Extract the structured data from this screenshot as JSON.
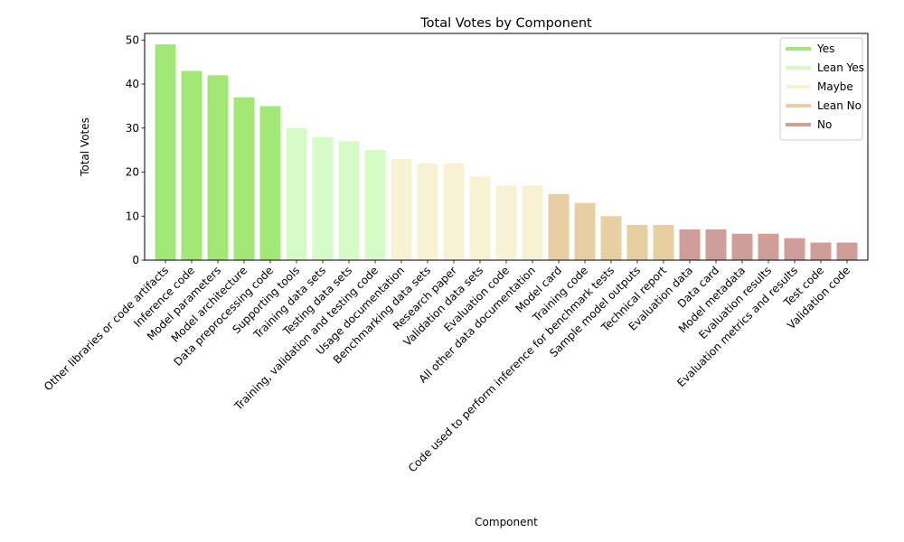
{
  "chart_data": {
    "type": "bar",
    "title": "Total Votes by Component",
    "xlabel": "Component",
    "ylabel": "Total Votes",
    "ylim": [
      0,
      51.5
    ],
    "yticks": [
      0,
      10,
      20,
      30,
      40,
      50
    ],
    "grid": false,
    "legend_position": "top-right",
    "categories": [
      "Other libraries or code artifacts",
      "Inference code",
      "Model parameters",
      "Model architecture",
      "Data preprocessing code",
      "Supporting tools",
      "Training data sets",
      "Testing data sets",
      "Training, validation and testing code",
      "Usage documentation",
      "Benchmarking data sets",
      "Research paper",
      "Validation data sets",
      "Evaluation code",
      "All other data documentation",
      "Model card",
      "Training code",
      "Code used to perform inference for benchmark tests",
      "Sample model outputs",
      "Technical report",
      "Evaluation data",
      "Data card",
      "Model metadata",
      "Evaluation results",
      "Evaluation metrics and results",
      "Test code",
      "Validation code"
    ],
    "values": [
      49,
      43,
      42,
      37,
      35,
      30,
      28,
      27,
      25,
      23,
      22,
      22,
      19,
      17,
      17,
      15,
      13,
      10,
      8,
      8,
      7,
      7,
      6,
      6,
      5,
      4,
      4
    ],
    "groups": [
      "Yes",
      "Yes",
      "Yes",
      "Yes",
      "Yes",
      "Lean Yes",
      "Lean Yes",
      "Lean Yes",
      "Lean Yes",
      "Maybe",
      "Maybe",
      "Maybe",
      "Maybe",
      "Maybe",
      "Maybe",
      "Lean No",
      "Lean No",
      "Lean No",
      "Lean No",
      "Lean No",
      "No",
      "No",
      "No",
      "No",
      "No",
      "No",
      "No"
    ],
    "legend": [
      {
        "name": "Yes",
        "color": "#a1e877"
      },
      {
        "name": "Lean Yes",
        "color": "#d6fbc7"
      },
      {
        "name": "Maybe",
        "color": "#f8f2d5"
      },
      {
        "name": "Lean No",
        "color": "#e8cfa2"
      },
      {
        "name": "No",
        "color": "#d09e99"
      }
    ]
  }
}
